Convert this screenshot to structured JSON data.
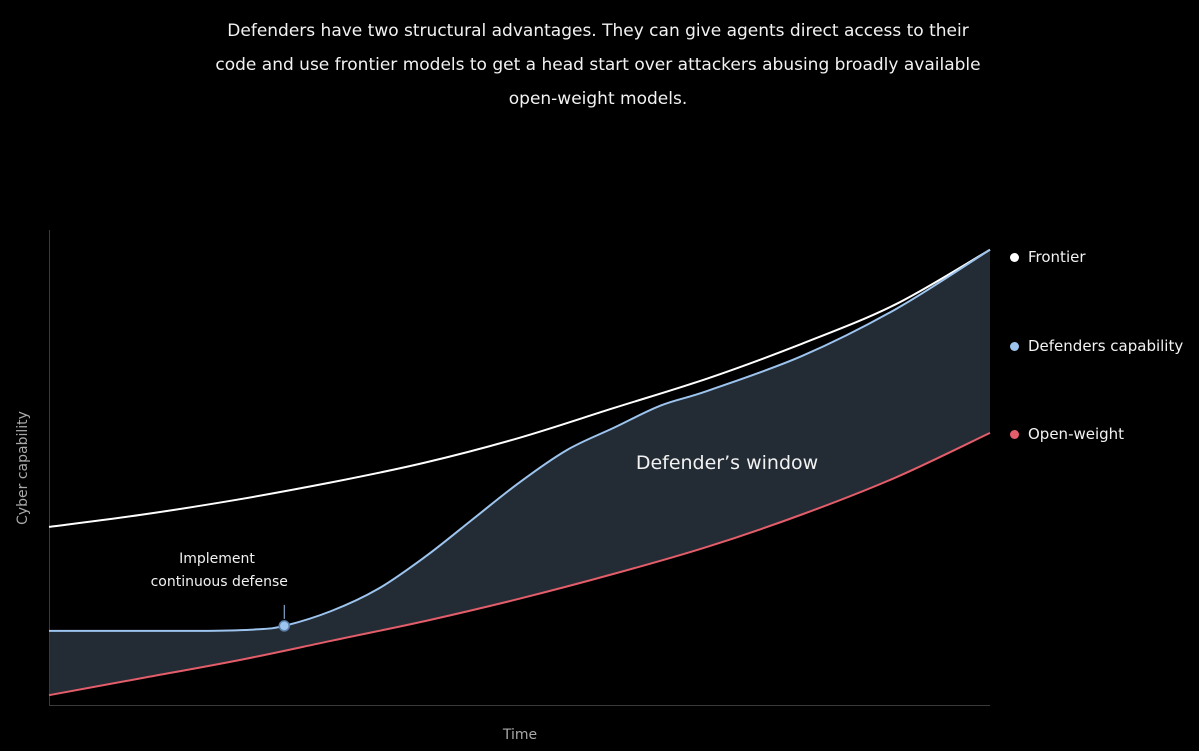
{
  "caption": {
    "lines": [
      "Defenders have two structural advantages. They can give agents direct access to their",
      "code and use frontier models to get a head start over attackers abusing broadly available",
      "open-weight models."
    ]
  },
  "chart_data": {
    "type": "area",
    "xlabel": "Time",
    "ylabel": "Cyber capability",
    "xlim": [
      0,
      100
    ],
    "ylim": [
      0,
      100
    ],
    "grid": false,
    "legend_position": "right",
    "series": [
      {
        "name": "Frontier",
        "color": "#ffffff",
        "x": [
          0,
          10,
          20,
          30,
          40,
          50,
          60,
          70,
          80,
          90,
          100
        ],
        "y": [
          38,
          40.5,
          43.5,
          47,
          51,
          56,
          62,
          68,
          75,
          83,
          94
        ]
      },
      {
        "name": "Defenders capability",
        "color": "#9cc4ee",
        "x": [
          0,
          10,
          17,
          22,
          25,
          30,
          35,
          40,
          45,
          50,
          55,
          60,
          65,
          70,
          80,
          90,
          100
        ],
        "y": [
          17,
          17,
          17,
          17.3,
          18,
          21,
          25.5,
          32,
          39.5,
          47,
          53.5,
          58,
          62.5,
          65.5,
          72.5,
          82,
          94
        ]
      },
      {
        "name": "Open-weight",
        "color": "#e35d6a",
        "x": [
          0,
          10,
          20,
          30,
          40,
          50,
          60,
          70,
          80,
          90,
          100
        ],
        "y": [
          4,
          7.5,
          11,
          15,
          19,
          23.5,
          28.5,
          34,
          40.5,
          48,
          57
        ]
      }
    ],
    "shaded_region": {
      "label": "Defender’s window",
      "between": [
        "Defenders capability",
        "Open-weight"
      ],
      "color": "#232b34"
    },
    "annotations": [
      {
        "text_lines": [
          "Implement",
          "continuous defense"
        ],
        "series": "Defenders capability",
        "x": 25,
        "y": 18
      }
    ]
  }
}
